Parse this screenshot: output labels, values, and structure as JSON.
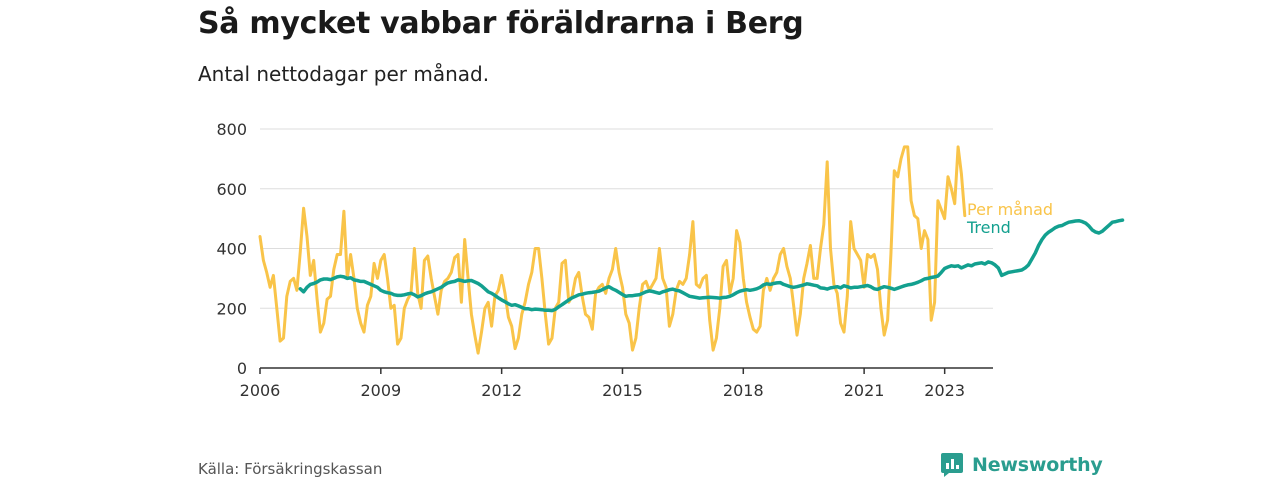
{
  "header": {
    "title": "Så mycket vabbar föräldrarna i Berg",
    "subtitle": "Antal nettodagar per månad."
  },
  "footer": {
    "source": "Källa: Försäkringskassan",
    "brand": "Newsworthy"
  },
  "colors": {
    "monthly": "#f9c449",
    "trend": "#13a08f",
    "axis": "#333333",
    "grid": "#dddddd"
  },
  "chart_data": {
    "type": "line",
    "title": "Så mycket vabbar föräldrarna i Berg",
    "subtitle": "Antal nettodagar per månad.",
    "xlabel": "",
    "ylabel": "",
    "xlim": [
      2006.0,
      2024.2
    ],
    "ylim": [
      0,
      800
    ],
    "yticks": [
      0,
      200,
      400,
      600,
      800
    ],
    "xticks": [
      2006,
      2009,
      2012,
      2015,
      2018,
      2021,
      2023
    ],
    "grid": "horizontal",
    "legend": "inline-right",
    "series": [
      {
        "name": "Per månad",
        "color": "#f9c449",
        "x_start": 2006.0,
        "x_step": 0.08333,
        "values": [
          440,
          360,
          320,
          270,
          310,
          200,
          90,
          100,
          240,
          290,
          300,
          260,
          390,
          535,
          440,
          310,
          360,
          230,
          120,
          150,
          230,
          240,
          330,
          380,
          380,
          525,
          300,
          380,
          300,
          200,
          150,
          120,
          210,
          240,
          350,
          300,
          360,
          380,
          300,
          200,
          210,
          80,
          100,
          200,
          230,
          250,
          400,
          250,
          200,
          360,
          375,
          300,
          240,
          180,
          260,
          290,
          300,
          320,
          370,
          380,
          220,
          430,
          300,
          180,
          110,
          50,
          120,
          200,
          220,
          140,
          240,
          260,
          310,
          250,
          170,
          140,
          65,
          100,
          180,
          220,
          280,
          320,
          400,
          400,
          300,
          180,
          80,
          100,
          200,
          220,
          350,
          360,
          220,
          240,
          300,
          320,
          240,
          180,
          170,
          130,
          250,
          270,
          280,
          250,
          300,
          330,
          400,
          320,
          270,
          180,
          150,
          60,
          100,
          200,
          280,
          290,
          260,
          280,
          300,
          400,
          300,
          270,
          140,
          180,
          260,
          290,
          280,
          300,
          380,
          490,
          280,
          270,
          300,
          310,
          160,
          60,
          100,
          200,
          340,
          360,
          250,
          300,
          460,
          420,
          300,
          220,
          170,
          130,
          120,
          140,
          260,
          300,
          260,
          300,
          320,
          380,
          400,
          340,
          300,
          210,
          110,
          180,
          300,
          350,
          410,
          300,
          300,
          400,
          480,
          690,
          400,
          280,
          250,
          150,
          120,
          240,
          490,
          400,
          380,
          360,
          270,
          380,
          370,
          380,
          330,
          200,
          110,
          160,
          380,
          660,
          640,
          700,
          740,
          740,
          560,
          510,
          500,
          400,
          460,
          430,
          160,
          220,
          560,
          530,
          500,
          640,
          600,
          550,
          740,
          650,
          510
        ]
      },
      {
        "name": "Trend",
        "color": "#13a08f",
        "x_start": 2007.0,
        "x_step": 0.08333,
        "values": [
          265,
          255,
          270,
          280,
          283,
          288,
          295,
          298,
          298,
          296,
          300,
          305,
          307,
          305,
          300,
          302,
          295,
          293,
          290,
          290,
          285,
          280,
          275,
          270,
          260,
          255,
          252,
          250,
          245,
          243,
          243,
          245,
          248,
          250,
          245,
          238,
          242,
          248,
          252,
          255,
          260,
          265,
          270,
          278,
          285,
          288,
          290,
          295,
          293,
          290,
          292,
          293,
          288,
          283,
          275,
          265,
          255,
          250,
          243,
          235,
          228,
          222,
          215,
          210,
          212,
          208,
          203,
          198,
          198,
          195,
          197,
          196,
          195,
          193,
          193,
          192,
          196,
          205,
          212,
          220,
          228,
          235,
          240,
          245,
          247,
          250,
          252,
          253,
          255,
          257,
          262,
          268,
          272,
          265,
          260,
          253,
          246,
          240,
          242,
          242,
          244,
          245,
          250,
          255,
          258,
          256,
          253,
          250,
          255,
          258,
          262,
          264,
          260,
          258,
          252,
          246,
          240,
          238,
          236,
          234,
          235,
          236,
          237,
          236,
          235,
          234,
          236,
          237,
          240,
          245,
          252,
          257,
          260,
          262,
          260,
          262,
          265,
          270,
          278,
          282,
          280,
          283,
          285,
          286,
          280,
          276,
          272,
          270,
          272,
          275,
          278,
          282,
          280,
          277,
          275,
          268,
          267,
          264,
          268,
          270,
          272,
          268,
          275,
          272,
          268,
          270,
          270,
          272,
          274,
          276,
          272,
          265,
          263,
          268,
          272,
          270,
          267,
          263,
          267,
          271,
          275,
          278,
          280,
          283,
          287,
          292,
          298,
          300,
          303,
          305,
          308,
          320,
          333,
          338,
          342,
          340,
          342,
          335,
          340,
          345,
          342,
          348,
          350,
          352,
          348,
          355,
          352,
          345,
          335,
          310,
          315,
          320,
          322,
          324,
          326,
          328,
          335,
          345,
          365,
          385,
          410,
          430,
          445,
          455,
          462,
          470,
          475,
          477,
          483,
          488,
          490,
          492,
          493,
          490,
          485,
          475,
          462,
          455,
          452,
          458,
          468,
          478,
          488,
          490,
          493,
          495
        ]
      }
    ]
  }
}
